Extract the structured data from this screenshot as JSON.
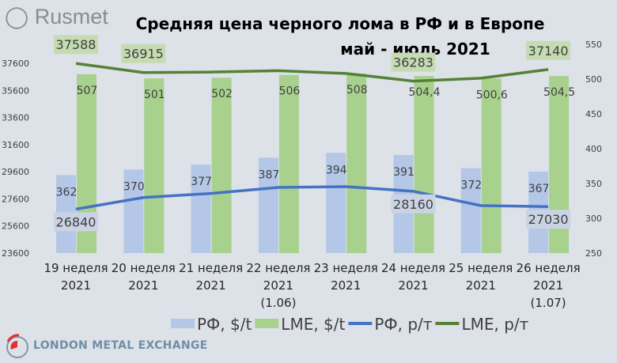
{
  "logo_text": "Rusmet",
  "footer_logo_text": "LONDON METAL EXCHANGE",
  "chart_data": {
    "type": "bar+line",
    "title": "Средняя цена черного лома в РФ и в Европе",
    "subtitle": "май - июль 2021",
    "categories": [
      [
        "19 неделя",
        "2021"
      ],
      [
        "20 неделя",
        "2021"
      ],
      [
        "21 неделя",
        "2021"
      ],
      [
        "22 неделя",
        "2021",
        "(1.06)"
      ],
      [
        "23 неделя",
        "2021"
      ],
      [
        "24 неделя",
        "2021"
      ],
      [
        "25 неделя",
        "2021"
      ],
      [
        "26 неделя",
        "2021",
        "(1.07)"
      ]
    ],
    "left_axis": {
      "ticks": [
        "23600",
        "25600",
        "27600",
        "29600",
        "31600",
        "33600",
        "35600",
        "37600"
      ],
      "ylim": [
        23600,
        39000
      ]
    },
    "right_axis": {
      "ticks": [
        "250",
        "300",
        "350",
        "400",
        "450",
        "500",
        "550"
      ],
      "ylim": [
        250,
        550
      ]
    },
    "bar_series": [
      {
        "name": "РФ, $/t",
        "color": "#b4c7e7",
        "axis": "right",
        "values": [
          362,
          370,
          377,
          387,
          394,
          391,
          372,
          367
        ],
        "labels": [
          "362",
          "370",
          "377",
          "387",
          "394",
          "391",
          "372",
          "367"
        ]
      },
      {
        "name": "LME, $/t",
        "color": "#a9d18e",
        "axis": "right",
        "values": [
          507,
          501,
          502,
          506,
          508,
          504.4,
          500.6,
          504.5
        ],
        "labels": [
          "507",
          "501",
          "502",
          "506",
          "508",
          "504,4",
          "500,6",
          "504,5"
        ]
      }
    ],
    "line_series": [
      {
        "name": "РФ, р/т",
        "color": "#4472c4",
        "axis": "left",
        "values": [
          26840,
          27700,
          28000,
          28440,
          28500,
          28160,
          27100,
          27030
        ],
        "labels": [
          "26840",
          "",
          "",
          "",
          "",
          "28160",
          "",
          "27030"
        ],
        "label_bg": "#c9d3e3"
      },
      {
        "name": "LME, р/т",
        "color": "#548235",
        "axis": "left",
        "values": [
          37588,
          36915,
          36950,
          37050,
          36850,
          36283,
          36500,
          37140
        ],
        "labels": [
          "37588",
          "36915",
          "",
          "",
          "",
          "36283",
          "",
          "37140"
        ],
        "label_bg": "#c5dcb3"
      }
    ],
    "grid": false,
    "legend": "bottom"
  }
}
